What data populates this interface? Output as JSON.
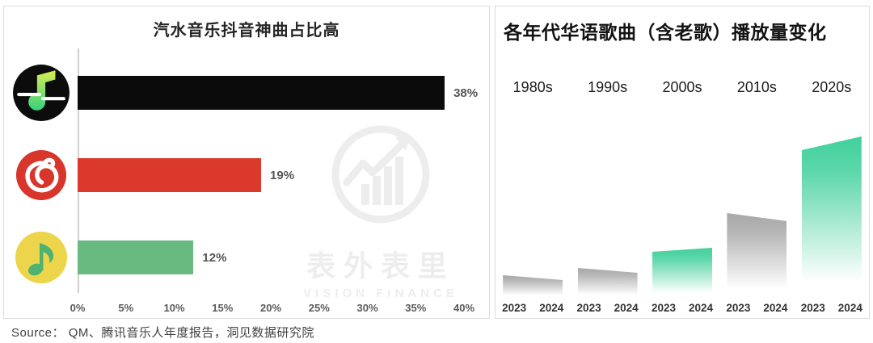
{
  "watermark": {
    "cn": "表外表里",
    "en": "VISION FINANCE"
  },
  "source": {
    "text": "Source： QM、腾讯音乐人年度报告，洞见数据研究院"
  },
  "chart_data": [
    {
      "type": "bar",
      "orientation": "horizontal",
      "title": "汽水音乐抖音神曲占比高",
      "categories": [
        "汽水音乐 (Soda Music)",
        "网易云音乐 (NetEase Cloud Music)",
        "QQ音乐 (QQ Music)"
      ],
      "category_icons": [
        "soda-music-icon",
        "netease-cloud-music-icon",
        "qq-music-icon"
      ],
      "values": [
        38,
        19,
        12
      ],
      "data_labels": [
        "38%",
        "19%",
        "12%"
      ],
      "bar_colors": [
        "#0b0b0b",
        "#da392c",
        "#68ba80"
      ],
      "xlim": [
        0,
        40
      ],
      "x_ticks": [
        "0%",
        "5%",
        "10%",
        "15%",
        "20%",
        "25%",
        "30%",
        "35%",
        "40%"
      ],
      "grid": false,
      "legend": "none"
    },
    {
      "type": "bar",
      "orientation": "vertical",
      "title": "各年代华语歌曲（含老歌）播放量变化",
      "categories": [
        "1980s",
        "1990s",
        "2000s",
        "2010s",
        "2020s"
      ],
      "x_sub": [
        "2023",
        "2024"
      ],
      "series": [
        {
          "name": "2023",
          "values": [
            28,
            37,
            57,
            105,
            183
          ]
        },
        {
          "name": "2024",
          "values": [
            22,
            31,
            62,
            95,
            200
          ]
        }
      ],
      "value_scale": "relative play-volume height, no y-axis shown (estimated from pixels)",
      "group_colors": [
        "gray",
        "gray",
        "green",
        "gray",
        "green"
      ],
      "color_map": {
        "gray": "#a8a8a8",
        "green": "#41d09c"
      },
      "style_note": "each decade drawn as one slanted gradient ribbon fading to white; green = growth, gray = decline",
      "grid": false,
      "legend": "none"
    }
  ]
}
